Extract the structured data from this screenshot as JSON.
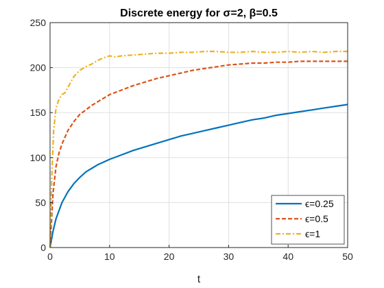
{
  "chart_data": {
    "type": "line",
    "title": "Discrete energy for σ=2, β=0.5",
    "xlabel": "t",
    "ylabel": "",
    "xlim": [
      0,
      50
    ],
    "ylim": [
      0,
      250
    ],
    "xticks": [
      0,
      10,
      20,
      30,
      40,
      50
    ],
    "yticks": [
      0,
      50,
      100,
      150,
      200,
      250
    ],
    "grid": true,
    "legend_position": "bottom-right",
    "series": [
      {
        "name": "ϵ=0.25",
        "color": "#0072BD",
        "style": "solid",
        "x": [
          0,
          0.5,
          1,
          2,
          3,
          4,
          5,
          6,
          7,
          8,
          9,
          10,
          12,
          14,
          16,
          18,
          20,
          22,
          24,
          26,
          28,
          30,
          32,
          34,
          36,
          38,
          40,
          42,
          44,
          46,
          48,
          50
        ],
        "y": [
          0,
          18,
          32,
          50,
          62,
          71,
          78,
          84,
          88,
          92,
          95,
          98,
          103,
          108,
          112,
          116,
          120,
          124,
          127,
          130,
          133,
          136,
          139,
          142,
          144,
          147,
          149,
          151,
          153,
          155,
          157,
          159
        ]
      },
      {
        "name": "ϵ=0.5",
        "color": "#D95319",
        "style": "dashed",
        "x": [
          0,
          0.5,
          1,
          1.5,
          2,
          3,
          4,
          5,
          6,
          7,
          8,
          10,
          12,
          14,
          16,
          18,
          20,
          22,
          24,
          26,
          28,
          30,
          32,
          34,
          36,
          38,
          40,
          42,
          44,
          46,
          48,
          50
        ],
        "y": [
          0,
          60,
          90,
          105,
          115,
          130,
          140,
          148,
          153,
          158,
          162,
          170,
          175,
          180,
          184,
          188,
          191,
          194,
          197,
          199,
          201,
          203,
          204,
          205,
          205,
          206,
          206,
          207,
          207,
          207,
          207,
          207
        ]
      },
      {
        "name": "ϵ=1",
        "color": "#EDB120",
        "style": "dashdot",
        "x": [
          0,
          0.3,
          0.6,
          1,
          1.5,
          2,
          2.5,
          3,
          4,
          5,
          6,
          7,
          8,
          9,
          10,
          11,
          12,
          14,
          16,
          18,
          20,
          22,
          24,
          26,
          28,
          30,
          32,
          34,
          36,
          38,
          40,
          42,
          44,
          46,
          48,
          50
        ],
        "y": [
          0,
          80,
          130,
          155,
          165,
          170,
          172,
          178,
          190,
          197,
          201,
          204,
          208,
          211,
          213,
          212,
          213,
          214,
          215,
          216,
          216,
          217,
          217,
          218,
          218,
          217,
          217,
          218,
          217,
          217,
          218,
          217,
          218,
          217,
          218,
          218
        ]
      }
    ]
  }
}
